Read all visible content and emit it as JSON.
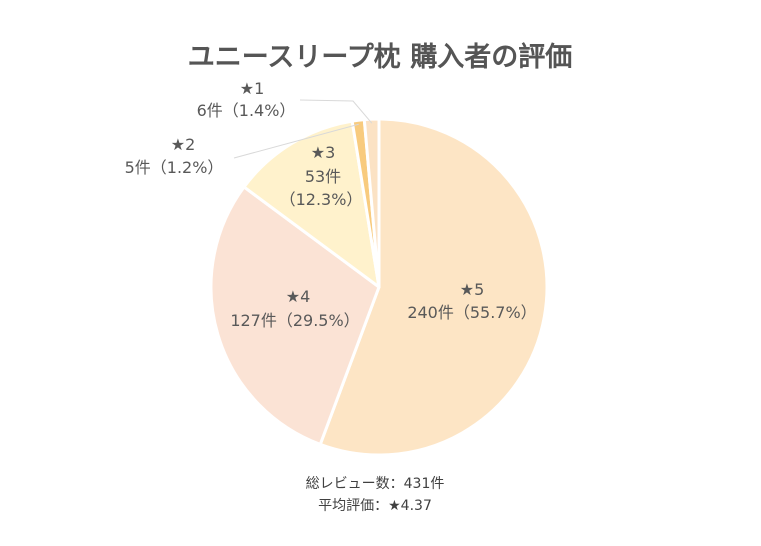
{
  "chart_data": {
    "type": "pie",
    "title": "ユニースリープ枕 購入者の評価",
    "slices": [
      {
        "name": "★5",
        "count_label": "240件（55.7%）",
        "value": 240,
        "percent": 55.7,
        "color": "#FDE5C5"
      },
      {
        "name": "★4",
        "count_label": "127件（29.5%）",
        "value": 127,
        "percent": 29.5,
        "color": "#FBE3D5"
      },
      {
        "name": "★3",
        "count_label": "53件",
        "percent_label": "（12.3%）",
        "value": 53,
        "percent": 12.3,
        "color": "#FFF2CC"
      },
      {
        "name": "★2",
        "count_label": "5件（1.2%）",
        "value": 5,
        "percent": 1.2,
        "color": "#F8CB7E"
      },
      {
        "name": "★1",
        "count_label": "6件（1.4%）",
        "value": 6,
        "percent": 1.4,
        "color": "#FBE2C4"
      }
    ]
  },
  "footer": {
    "total_reviews": "総レビュー数：431件",
    "average_rating": "平均評価：★4.37"
  }
}
